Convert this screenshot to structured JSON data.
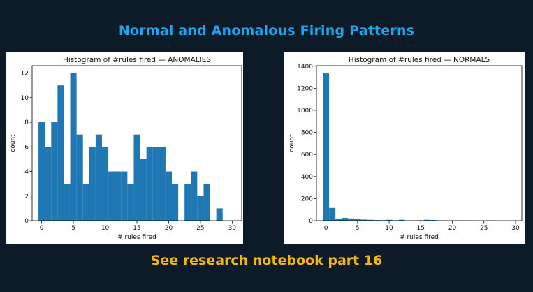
{
  "header": {
    "title": "Normal and Anomalous Firing Patterns"
  },
  "footer": {
    "text": "See research notebook part 16"
  },
  "colors": {
    "background": "#0d1b28",
    "title": "#1aa7f0",
    "footer": "#f5b800",
    "bar": "#1f77b4"
  },
  "chart_data": [
    {
      "type": "bar",
      "title": "Histogram of #rules fired — ANOMALIES",
      "xlabel": "# rules fired",
      "ylabel": "count",
      "xlim": [
        -1.5,
        31.5
      ],
      "ylim": [
        0,
        12.6
      ],
      "xticks": [
        0,
        5,
        10,
        15,
        20,
        25,
        30
      ],
      "yticks": [
        0,
        2,
        4,
        6,
        8,
        10,
        12
      ],
      "grid": false,
      "bins": {
        "edges": [
          -0.5,
          0.5,
          1.5,
          2.5,
          3.5,
          4.5,
          5.5,
          6.5,
          7.5,
          8.5,
          9.5,
          10.5,
          11.5,
          12.5,
          13.5,
          14.5,
          15.5,
          16.5,
          17.5,
          18.5,
          19.5,
          20.5,
          21.5,
          22.5,
          23.5,
          24.5,
          25.5,
          26.5,
          27.5,
          28.5
        ],
        "counts": [
          8,
          6,
          8,
          11,
          3,
          12,
          7,
          3,
          6,
          7,
          6,
          4,
          4,
          4,
          3,
          7,
          5,
          6,
          6,
          6,
          4,
          3,
          0,
          3,
          4,
          2,
          3,
          0,
          1
        ]
      }
    },
    {
      "type": "bar",
      "title": "Histogram of #rules fired — NORMALS",
      "xlabel": "# rules fired",
      "ylabel": "count",
      "xlim": [
        -1.5,
        31.0
      ],
      "ylim": [
        0,
        1405
      ],
      "xticks": [
        0,
        5,
        10,
        15,
        20,
        25,
        30
      ],
      "yticks": [
        0,
        200,
        400,
        600,
        800,
        1000,
        1200,
        1400
      ],
      "grid": false,
      "bins": {
        "edges": [
          -0.5,
          0.5,
          1.5,
          2.5,
          3.5,
          4.5,
          5.5,
          6.5,
          7.5,
          8.5,
          9.5,
          10.5,
          11.5,
          12.5,
          13.5,
          14.5,
          15.5,
          16.5,
          17.5,
          18.5,
          19.5,
          20.5,
          21.5,
          22.5,
          23.5,
          24.5,
          25.5,
          26.5,
          27.5
        ],
        "counts": [
          1335,
          115,
          15,
          25,
          20,
          15,
          10,
          8,
          6,
          5,
          8,
          4,
          8,
          3,
          3,
          4,
          8,
          6,
          2,
          2,
          2,
          2,
          2,
          1,
          1,
          1,
          2,
          1
        ]
      }
    }
  ]
}
